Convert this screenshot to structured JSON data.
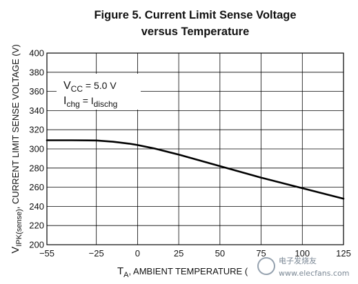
{
  "chart_data": {
    "type": "line",
    "title_line1": "Figure 5. Current Limit Sense Voltage",
    "title_line2": "versus Temperature",
    "xlabel": {
      "symbol": "T",
      "sub": "A",
      "text": ", AMBIENT TEMPERATURE ("
    },
    "ylabel": {
      "symbol": "V",
      "sub": "IPK(sense)",
      "text": ", CURRENT LIMIT SENSE VOLTAGE (V)"
    },
    "xlim": [
      -55,
      125
    ],
    "ylim": [
      200,
      400
    ],
    "x_ticks": [
      -55,
      -25,
      0,
      25,
      50,
      75,
      100,
      125
    ],
    "x_tick_labels": [
      "−55",
      "−25",
      "0",
      "25",
      "50",
      "75",
      "100",
      "125"
    ],
    "y_ticks": [
      200,
      220,
      240,
      260,
      280,
      300,
      320,
      340,
      360,
      380,
      400
    ],
    "y_tick_labels": [
      "200",
      "220",
      "240",
      "260",
      "280",
      "300",
      "320",
      "340",
      "360",
      "380",
      "400"
    ],
    "grid": true,
    "series": [
      {
        "x": [
          -55,
          -40,
          -25,
          -15,
          -5,
          0,
          10,
          25,
          50,
          75,
          100,
          125
        ],
        "y": [
          309,
          309,
          308.8,
          307.5,
          305.5,
          304,
          300.5,
          294,
          282,
          270,
          259,
          248
        ]
      }
    ],
    "annotation": {
      "line1_main": "V",
      "line1_sub": "CC",
      "line1_rest": " = 5.0 V",
      "line2_main": "I",
      "line2_sub": "chg",
      "line2_eq": " = I",
      "line2_sub2": "dischg"
    }
  },
  "watermark": {
    "text_line1": "电子发烧友",
    "text_line2": "www.elecfans.com"
  }
}
